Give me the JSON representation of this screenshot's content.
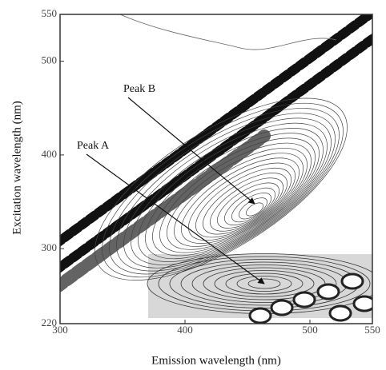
{
  "chart_data": {
    "type": "contour",
    "x_label": "Emission wavelength (nm)",
    "y_label": "Excitation wavelength (nm)",
    "xlim": [
      300,
      550
    ],
    "ylim": [
      220,
      550
    ],
    "xticks": [
      300,
      400,
      500,
      550
    ],
    "yticks": [
      220,
      300,
      400,
      500,
      550
    ],
    "annotations": [
      "Peak A",
      "Peak B"
    ]
  }
}
